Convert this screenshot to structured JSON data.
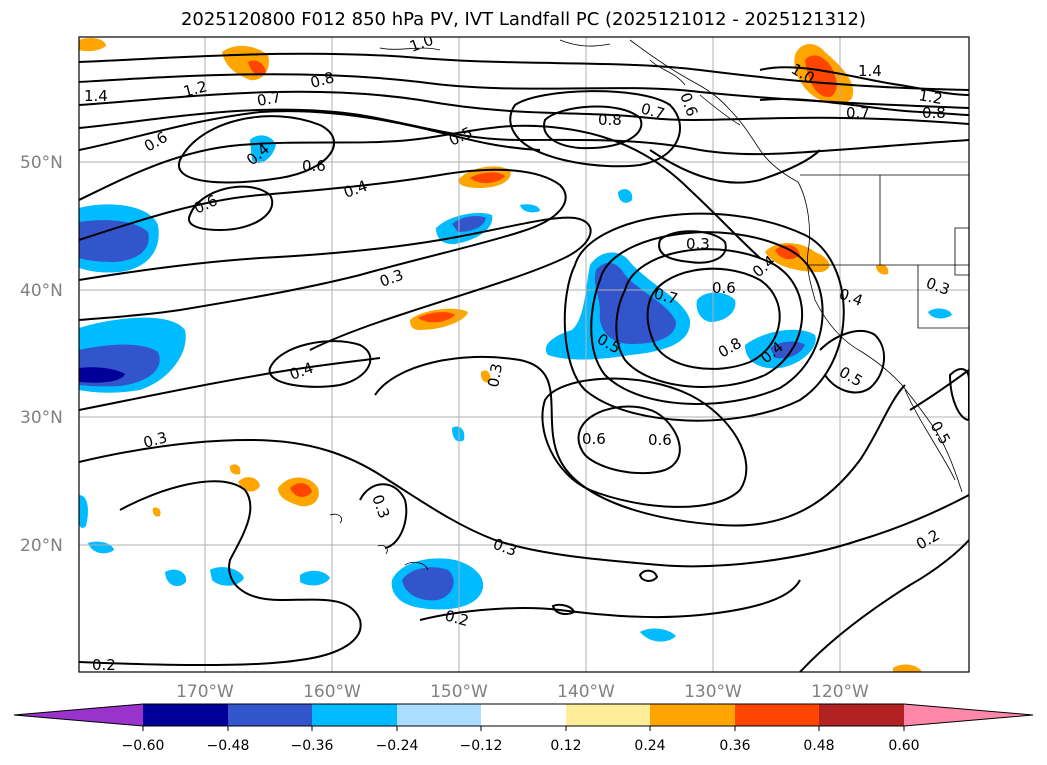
{
  "title": "2025120800 F012 850 hPa PV, IVT Landfall PC (2025121012 - 2025121312)",
  "map": {
    "lat_labels": [
      "50°N",
      "40°N",
      "30°N",
      "20°N"
    ],
    "lon_labels": [
      "170°W",
      "160°W",
      "150°W",
      "140°W",
      "130°W",
      "120°W"
    ]
  },
  "contour_labels": [
    {
      "text": "1.4",
      "id": "c1"
    },
    {
      "text": "1.2",
      "id": "c2"
    },
    {
      "text": "0.8",
      "id": "c3"
    },
    {
      "text": "0.7",
      "id": "c4"
    },
    {
      "text": "1.0",
      "id": "c5"
    },
    {
      "text": "0.6",
      "id": "c6"
    },
    {
      "text": "0.4",
      "id": "c7"
    },
    {
      "text": "0.6",
      "id": "c8"
    },
    {
      "text": "0.5",
      "id": "c9"
    },
    {
      "text": "0.6",
      "id": "c10"
    },
    {
      "text": "0.4",
      "id": "c11"
    },
    {
      "text": "0.8",
      "id": "c12"
    },
    {
      "text": "0.7",
      "id": "c13"
    },
    {
      "text": "0.6",
      "id": "c14"
    },
    {
      "text": "1.0",
      "id": "c15"
    },
    {
      "text": "1.4",
      "id": "c16"
    },
    {
      "text": "1.2",
      "id": "c17"
    },
    {
      "text": "0.7",
      "id": "c18"
    },
    {
      "text": "0.8",
      "id": "c19"
    },
    {
      "text": "0.3",
      "id": "c20"
    },
    {
      "text": "0.4",
      "id": "c21"
    },
    {
      "text": "0.7",
      "id": "c22"
    },
    {
      "text": "0.6",
      "id": "c23"
    },
    {
      "text": "0.4",
      "id": "c24"
    },
    {
      "text": "0.3",
      "id": "c25"
    },
    {
      "text": "0.3",
      "id": "c26"
    },
    {
      "text": "0.5",
      "id": "c27"
    },
    {
      "text": "0.4",
      "id": "c28"
    },
    {
      "text": "0.8",
      "id": "c29"
    },
    {
      "text": "0.4",
      "id": "c30"
    },
    {
      "text": "0.5",
      "id": "c31"
    },
    {
      "text": "0.3",
      "id": "c32"
    },
    {
      "text": "0.3",
      "id": "c33"
    },
    {
      "text": "0.6",
      "id": "c34"
    },
    {
      "text": "0.6",
      "id": "c35"
    },
    {
      "text": "0.5",
      "id": "c36"
    },
    {
      "text": "0.3",
      "id": "c37"
    },
    {
      "text": "0.3",
      "id": "c38"
    },
    {
      "text": "0.2",
      "id": "c39"
    },
    {
      "text": "0.2",
      "id": "c40"
    },
    {
      "text": "0.2",
      "id": "c41"
    }
  ],
  "colorbar": {
    "ticks": [
      "−0.60",
      "−0.48",
      "−0.36",
      "−0.24",
      "−0.12",
      "0.12",
      "0.24",
      "0.36",
      "0.48",
      "0.60"
    ],
    "colors": [
      "#9933cc",
      "#000099",
      "#3355cc",
      "#00bbff",
      "#aaddff",
      "#ffffff",
      "#ffee99",
      "#ffa500",
      "#ff4500",
      "#b22222",
      "#ff88aa"
    ]
  },
  "fill_colors": {
    "cyan": "#00bbff",
    "blue": "#3355cc",
    "navy": "#000099",
    "orange": "#ffa500",
    "red": "#ff4500",
    "yellow": "#ffee99"
  }
}
